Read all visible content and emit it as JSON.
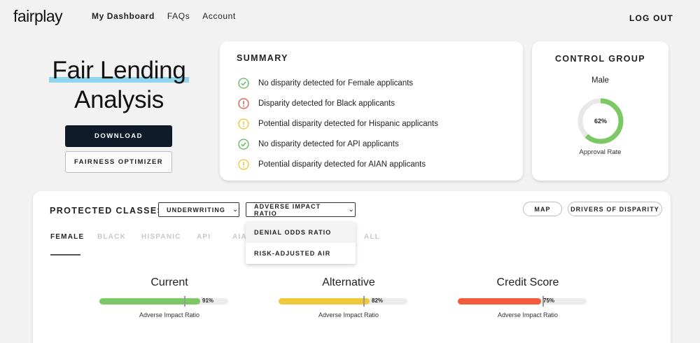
{
  "brand": {
    "logo": "fairplay"
  },
  "nav": {
    "items": [
      "My Dashboard",
      "FAQs",
      "Account"
    ],
    "logout": "LOG OUT"
  },
  "hero": {
    "title_line1": "Fair Lending",
    "title_line2": "Analysis",
    "download_label": "DOWNLOAD",
    "optimizer_label": "FAIRNESS OPTIMIZER"
  },
  "summary": {
    "title": "SUMMARY",
    "items": [
      {
        "status": "ok",
        "icon": "check-circle-icon",
        "text": "No disparity detected for Female applicants"
      },
      {
        "status": "alert",
        "icon": "alert-circle-icon",
        "text": "Disparity detected for Black applicants"
      },
      {
        "status": "warn",
        "icon": "warning-circle-icon",
        "text": "Potential disparity detected for Hispanic applicants"
      },
      {
        "status": "ok",
        "icon": "check-circle-icon",
        "text": "No disparity detected for API applicants"
      },
      {
        "status": "warn",
        "icon": "warning-circle-icon",
        "text": "Potential disparity detected for AIAN applicants"
      }
    ]
  },
  "control_group": {
    "title": "CONTROL GROUP",
    "group": "Male",
    "approval_rate": 0.62,
    "approval_rate_label": "62%",
    "rate_caption": "Approval Rate"
  },
  "protected_classes": {
    "title": "PROTECTED CLASSES",
    "underwriting_label": "UNDERWRITING",
    "metric_select_label": "ADVERSE IMPACT RATIO",
    "map_label": "MAP",
    "drivers_label": "DRIVERS OF DISPARITY",
    "tabs": [
      "FEMALE",
      "BLACK",
      "HISPANIC",
      "API",
      "AIA",
      "ALL"
    ],
    "active_tab": 0,
    "dropdown_options": [
      "DENIAL ODDS RATIO",
      "RISK-ADJUSTED AIR"
    ],
    "metrics": [
      {
        "title": "Current",
        "value": 0.91,
        "value_label": "91%",
        "caption": "Adverse Impact Ratio",
        "color": "#7cc864"
      },
      {
        "title": "Alternative",
        "value": 0.82,
        "value_label": "82%",
        "caption": "Adverse Impact Ratio",
        "color": "#f0c93a"
      },
      {
        "title": "Credit Score",
        "value": 0.75,
        "value_label": "75%",
        "caption": "Adverse Impact Ratio",
        "color": "#f45b3c"
      }
    ],
    "threshold": 0.8
  },
  "colors": {
    "ok": "#5cb85c",
    "alert": "#e0533d",
    "warn": "#f2c233",
    "donut": "#7cc864",
    "donut_track": "#e8e8e8"
  }
}
